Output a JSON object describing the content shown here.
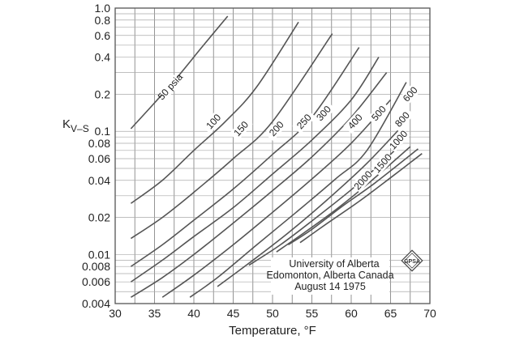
{
  "chart_data": {
    "type": "line",
    "title": "",
    "xlabel": "Temperature, °F",
    "ylabel": "K",
    "ylabel_subscript": "V–S",
    "xlim": [
      30,
      70
    ],
    "ylim": [
      0.004,
      1.0
    ],
    "yscale": "log",
    "grid": true,
    "x_ticks": [
      30,
      35,
      40,
      45,
      50,
      55,
      60,
      65,
      70
    ],
    "x_tick_labels": [
      "30",
      "35",
      "40",
      "45",
      "50",
      "55",
      "60",
      "65",
      "70"
    ],
    "y_ticks": [
      1.0,
      0.8,
      0.6,
      0.4,
      0.2,
      0.1,
      0.08,
      0.06,
      0.04,
      0.02,
      0.01,
      0.008,
      0.006,
      0.004
    ],
    "y_tick_labels": [
      "1.0",
      "0.8",
      "0.6",
      "0.4",
      "0.2",
      "0.1",
      "0.08",
      "0.06",
      "0.04",
      "0.02",
      "0.01",
      "0.008",
      "0.006",
      "0.004"
    ],
    "series": [
      {
        "name": "50 psia",
        "label": "50 psia",
        "x": [
          32,
          35,
          38,
          41,
          44.3
        ],
        "y": [
          0.105,
          0.17,
          0.28,
          0.48,
          0.86
        ],
        "label_at": [
          37,
          0.23
        ]
      },
      {
        "name": "100 psia",
        "label": "100",
        "x": [
          32,
          36,
          40,
          44,
          48,
          53.3
        ],
        "y": [
          0.026,
          0.04,
          0.07,
          0.12,
          0.23,
          0.77
        ],
        "label_at": [
          42.5,
          0.12
        ]
      },
      {
        "name": "150 psia",
        "label": "150",
        "x": [
          32,
          36,
          40,
          45,
          50,
          57.6
        ],
        "y": [
          0.0135,
          0.02,
          0.032,
          0.06,
          0.12,
          0.62
        ],
        "label_at": [
          46,
          0.105
        ]
      },
      {
        "name": "200 psia",
        "label": "200",
        "x": [
          32,
          36,
          40,
          45,
          50,
          55,
          61
        ],
        "y": [
          0.008,
          0.012,
          0.019,
          0.034,
          0.065,
          0.13,
          0.48
        ],
        "label_at": [
          50.5,
          0.105
        ]
      },
      {
        "name": "250 psia",
        "label": "250",
        "x": [
          32,
          36,
          40,
          45,
          50,
          55,
          60,
          63.5
        ],
        "y": [
          0.006,
          0.009,
          0.014,
          0.024,
          0.045,
          0.085,
          0.18,
          0.4
        ],
        "label_at": [
          54,
          0.12
        ]
      },
      {
        "name": "300 psia",
        "label": "300",
        "x": [
          32,
          36,
          40,
          45,
          50,
          55,
          60,
          64.5
        ],
        "y": [
          0.0045,
          0.0065,
          0.01,
          0.018,
          0.033,
          0.062,
          0.13,
          0.3
        ],
        "label_at": [
          56.5,
          0.14
        ]
      },
      {
        "name": "400 psia",
        "label": "400",
        "x": [
          36,
          40,
          45,
          50,
          55,
          60,
          65
        ],
        "y": [
          0.0045,
          0.0068,
          0.012,
          0.022,
          0.041,
          0.08,
          0.18
        ],
        "label_at": [
          60.5,
          0.12
        ]
      },
      {
        "name": "500 psia",
        "label": "500",
        "x": [
          39.5,
          43,
          48,
          53,
          58,
          62,
          67
        ],
        "y": [
          0.0045,
          0.0065,
          0.012,
          0.022,
          0.041,
          0.07,
          0.25
        ],
        "label_at": [
          63.5,
          0.14
        ]
      },
      {
        "name": "600 psia",
        "label": "600",
        "x": [
          43,
          47,
          52,
          57,
          62,
          67
        ],
        "y": [
          0.0055,
          0.0085,
          0.015,
          0.028,
          0.055,
          0.12
        ],
        "label_at": [
          67.5,
          0.2
        ]
      },
      {
        "name": "800 psia",
        "label": "800",
        "x": [
          47,
          51,
          56,
          61,
          66.5
        ],
        "y": [
          0.0082,
          0.012,
          0.021,
          0.038,
          0.08
        ],
        "label_at": [
          66.5,
          0.125
        ]
      },
      {
        "name": "1000 psia",
        "label": "1000",
        "x": [
          50.5,
          54,
          58,
          62,
          67.5
        ],
        "y": [
          0.0105,
          0.015,
          0.023,
          0.037,
          0.075
        ],
        "label_at": [
          66,
          0.085
        ]
      },
      {
        "name": "1500 psia",
        "label": "1500",
        "x": [
          52,
          55,
          59,
          63,
          68.5
        ],
        "y": [
          0.012,
          0.016,
          0.025,
          0.038,
          0.072
        ],
        "label_at": [
          64,
          0.055
        ]
      },
      {
        "name": "2000 psia",
        "label": "2000",
        "x": [
          53.5,
          57,
          61,
          65,
          69
        ],
        "y": [
          0.0125,
          0.018,
          0.027,
          0.042,
          0.066
        ],
        "label_at": [
          61.5,
          0.04
        ]
      }
    ],
    "annotations": [
      "University of Alberta",
      "Edomonton, Alberta Canada",
      "August 14 1975"
    ],
    "logo": "GPSA"
  }
}
